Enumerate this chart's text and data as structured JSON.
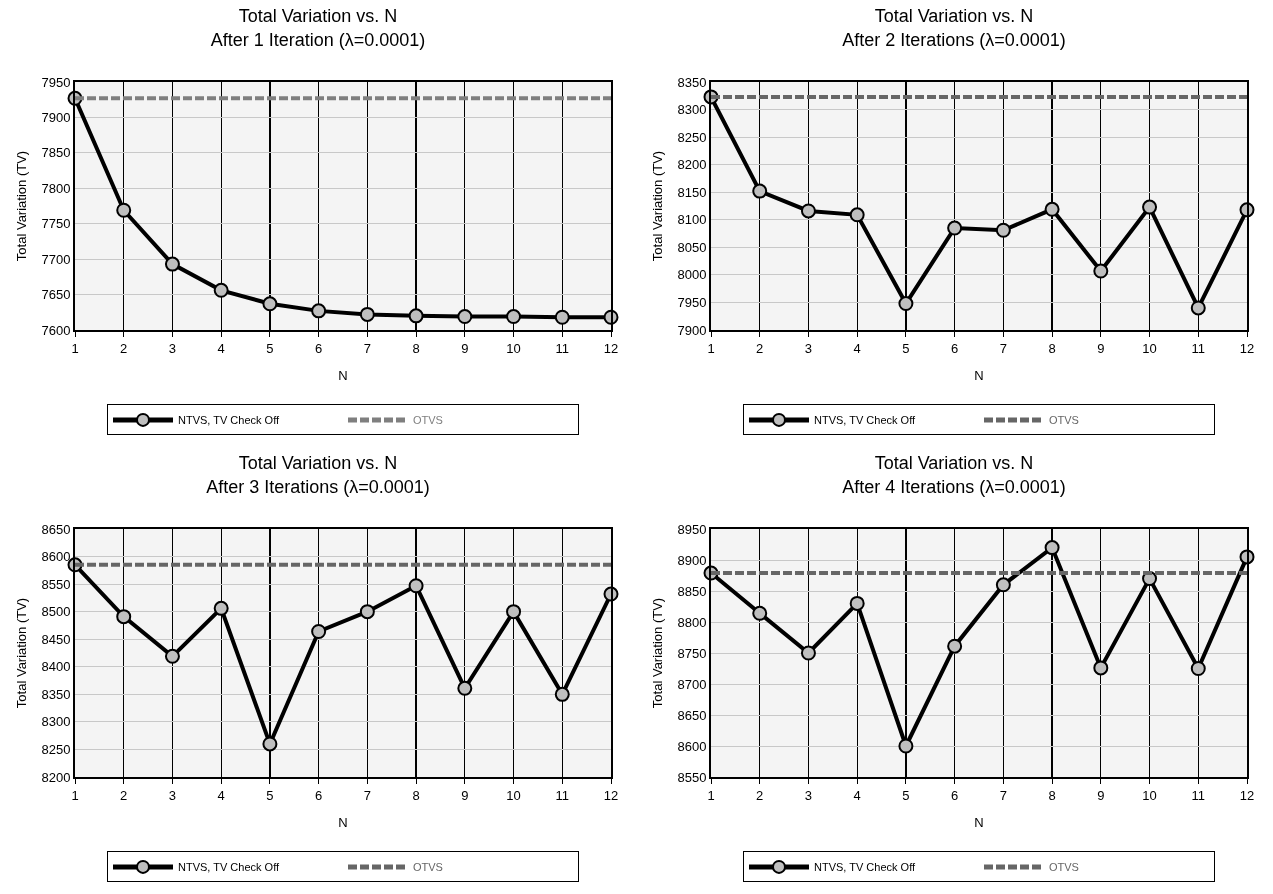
{
  "chart_data": [
    {
      "type": "line",
      "title": "Total Variation vs. N\nAfter 1 Iteration (λ=0.0001)",
      "xlabel": "N",
      "ylabel": "Total Variation (TV)",
      "x": [
        1,
        2,
        3,
        4,
        5,
        6,
        7,
        8,
        9,
        10,
        11,
        12
      ],
      "xlim": [
        1,
        12
      ],
      "xticks": [
        1,
        2,
        3,
        4,
        5,
        6,
        7,
        8,
        9,
        10,
        11,
        12
      ],
      "ylim": [
        7600,
        7950
      ],
      "yticks": [
        7600,
        7650,
        7700,
        7750,
        7800,
        7850,
        7900,
        7950
      ],
      "grid": true,
      "legend": "bottom",
      "series": [
        {
          "name": "NTVS, TV Check Off",
          "color": "#000000",
          "marker": "circle",
          "line_style": "solid",
          "values": [
            7927,
            7769,
            7693,
            7656,
            7637,
            7627,
            7622,
            7620,
            7619,
            7619,
            7618,
            7618
          ]
        },
        {
          "name": "OTVS",
          "color": "#7f7f7f",
          "marker": "none",
          "line_style": "dashed",
          "values": [
            7927,
            7927,
            7927,
            7927,
            7927,
            7927,
            7927,
            7927,
            7927,
            7927,
            7927,
            7927
          ]
        }
      ]
    },
    {
      "type": "line",
      "title": "Total Variation vs. N\nAfter 2 Iterations (λ=0.0001)",
      "xlabel": "N",
      "ylabel": "Total Variation (TV)",
      "x": [
        1,
        2,
        3,
        4,
        5,
        6,
        7,
        8,
        9,
        10,
        11,
        12
      ],
      "xlim": [
        1,
        12
      ],
      "xticks": [
        1,
        2,
        3,
        4,
        5,
        6,
        7,
        8,
        9,
        10,
        11,
        12
      ],
      "ylim": [
        7900,
        8350
      ],
      "yticks": [
        7900,
        7950,
        8000,
        8050,
        8100,
        8150,
        8200,
        8250,
        8300,
        8350
      ],
      "grid": true,
      "legend": "bottom",
      "series": [
        {
          "name": "NTVS, TV Check Off",
          "color": "#000000",
          "marker": "circle",
          "line_style": "solid",
          "values": [
            8323,
            8152,
            8116,
            8109,
            7948,
            8085,
            8081,
            8119,
            8007,
            8123,
            7940,
            8118
          ]
        },
        {
          "name": "OTVS",
          "color": "#666666",
          "marker": "none",
          "line_style": "dashed",
          "values": [
            8323,
            8323,
            8323,
            8323,
            8323,
            8323,
            8323,
            8323,
            8323,
            8323,
            8323,
            8323
          ]
        }
      ]
    },
    {
      "type": "line",
      "title": "Total Variation vs. N\nAfter 3 Iterations (λ=0.0001)",
      "xlabel": "N",
      "ylabel": "Total Variation (TV)",
      "x": [
        1,
        2,
        3,
        4,
        5,
        6,
        7,
        8,
        9,
        10,
        11,
        12
      ],
      "xlim": [
        1,
        12
      ],
      "xticks": [
        1,
        2,
        3,
        4,
        5,
        6,
        7,
        8,
        9,
        10,
        11,
        12
      ],
      "ylim": [
        8200,
        8650
      ],
      "yticks": [
        8200,
        8250,
        8300,
        8350,
        8400,
        8450,
        8500,
        8550,
        8600,
        8650
      ],
      "grid": true,
      "legend": "bottom",
      "series": [
        {
          "name": "NTVS, TV Check Off",
          "color": "#000000",
          "marker": "circle",
          "line_style": "solid",
          "values": [
            8585,
            8491,
            8419,
            8506,
            8260,
            8464,
            8500,
            8547,
            8361,
            8500,
            8350,
            8532
          ]
        },
        {
          "name": "OTVS",
          "color": "#666666",
          "marker": "none",
          "line_style": "dashed",
          "values": [
            8585,
            8585,
            8585,
            8585,
            8585,
            8585,
            8585,
            8585,
            8585,
            8585,
            8585,
            8585
          ]
        }
      ]
    },
    {
      "type": "line",
      "title": "Total Variation vs. N\nAfter 4 Iterations (λ=0.0001)",
      "xlabel": "N",
      "ylabel": "Total Variation (TV)",
      "x": [
        1,
        2,
        3,
        4,
        5,
        6,
        7,
        8,
        9,
        10,
        11,
        12
      ],
      "xlim": [
        1,
        12
      ],
      "xticks": [
        1,
        2,
        3,
        4,
        5,
        6,
        7,
        8,
        9,
        10,
        11,
        12
      ],
      "ylim": [
        8550,
        8950
      ],
      "yticks": [
        8550,
        8600,
        8650,
        8700,
        8750,
        8800,
        8850,
        8900,
        8950
      ],
      "grid": true,
      "legend": "bottom",
      "series": [
        {
          "name": "NTVS, TV Check Off",
          "color": "#000000",
          "marker": "circle",
          "line_style": "solid",
          "values": [
            8879,
            8814,
            8750,
            8830,
            8600,
            8761,
            8860,
            8920,
            8726,
            8870,
            8725,
            8905
          ]
        },
        {
          "name": "OTVS",
          "color": "#666666",
          "marker": "none",
          "line_style": "dashed",
          "values": [
            8879,
            8879,
            8879,
            8879,
            8879,
            8879,
            8879,
            8879,
            8879,
            8879,
            8879,
            8879
          ]
        }
      ]
    }
  ]
}
